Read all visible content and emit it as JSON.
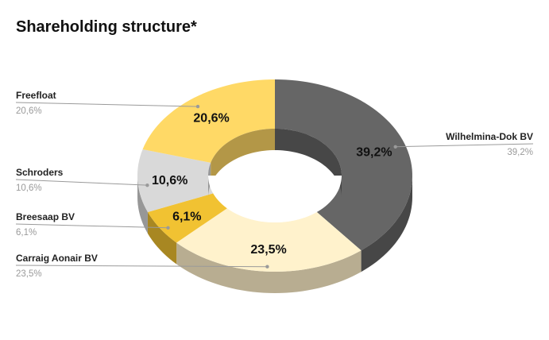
{
  "chart_data": {
    "type": "pie",
    "title": "Shareholding structure*",
    "slices": [
      {
        "name": "Wilhelmina-Dok BV",
        "value": 39.2,
        "label": "39,2%",
        "color": "#666666",
        "side": "#474747"
      },
      {
        "name": "Carraig Aonair BV",
        "value": 23.5,
        "label": "23,5%",
        "color": "#FFF2CC",
        "side": "#B8AD91"
      },
      {
        "name": "Breesaap BV",
        "value": 6.1,
        "label": "6,1%",
        "color": "#F1C232",
        "side": "#A88722"
      },
      {
        "name": "Schroders",
        "value": 10.6,
        "label": "10,6%",
        "color": "#D9D9D9",
        "side": "#979797"
      },
      {
        "name": "Freefloat",
        "value": 20.6,
        "label": "20,6%",
        "color": "#FFD966",
        "side": "#B39747"
      }
    ],
    "legend_placement": "callouts"
  }
}
